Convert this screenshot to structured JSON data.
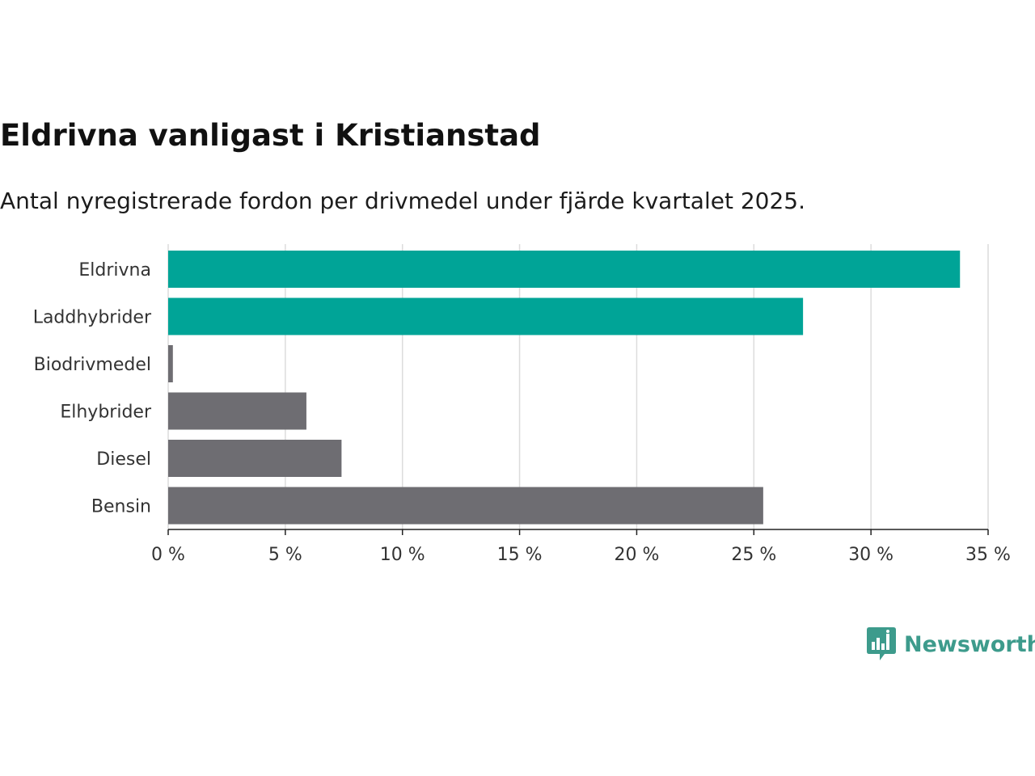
{
  "title": "Eldrivna vanligast i Kristianstad",
  "subtitle": "Antal nyregistrerade fordon per drivmedel under fjärde kvartalet 2025.",
  "brand": {
    "name": "Newsworthy",
    "color": "#3d9b8c",
    "icon": "bar-chart-speech-bubble-icon"
  },
  "colors": {
    "highlight": "#00a497",
    "default": "#6e6d72",
    "grid": "#dcdcdc",
    "axis": "#222222"
  },
  "chart_data": {
    "type": "bar",
    "orientation": "horizontal",
    "title": "Eldrivna vanligast i Kristianstad",
    "subtitle": "Antal nyregistrerade fordon per drivmedel under fjärde kvartalet 2025.",
    "categories": [
      "Eldrivna",
      "Laddhybrider",
      "Biodrivmedel",
      "Elhybrider",
      "Diesel",
      "Bensin"
    ],
    "values": [
      33.8,
      27.1,
      0.2,
      5.9,
      7.4,
      25.4
    ],
    "highlighted": [
      true,
      true,
      false,
      false,
      false,
      false
    ],
    "unit": "%",
    "xlim": [
      0,
      35
    ],
    "xticks": [
      0,
      5,
      10,
      15,
      20,
      25,
      30,
      35
    ],
    "xtick_labels": [
      "0 %",
      "5 %",
      "10 %",
      "15 %",
      "20 %",
      "25 %",
      "30 %",
      "35 %"
    ],
    "xlabel": "",
    "ylabel": "",
    "grid": true,
    "legend": "none"
  }
}
